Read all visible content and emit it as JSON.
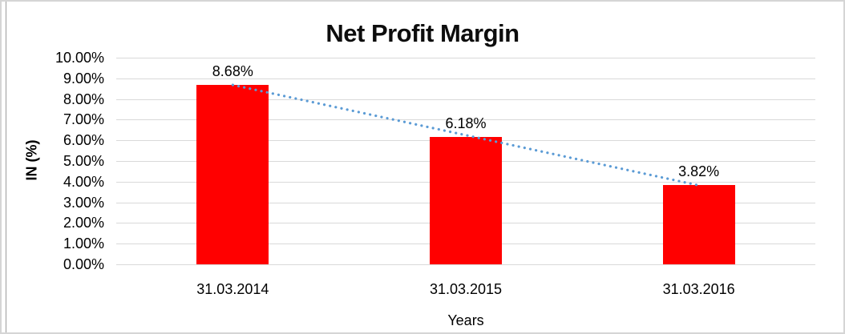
{
  "chart_data": {
    "type": "bar",
    "title": "Net Profit Margin",
    "categories": [
      "31.03.2014",
      "31.03.2015",
      "31.03.2016"
    ],
    "values": [
      8.68,
      6.18,
      3.82
    ],
    "data_labels": [
      "8.68%",
      "6.18%",
      "3.82%"
    ],
    "xlabel": "Years",
    "ylabel": "IN (%)",
    "ylim": [
      0,
      10
    ],
    "ytick_labels": [
      "0.00%",
      "1.00%",
      "2.00%",
      "3.00%",
      "4.00%",
      "5.00%",
      "6.00%",
      "7.00%",
      "8.00%",
      "9.00%",
      "10.00%"
    ],
    "grid": true,
    "legend": "none",
    "bar_color": "#FF0000",
    "gridline_color": "#D9D9D9",
    "text_color": "#000000",
    "trendline": {
      "type": "linear",
      "style": "dotted",
      "color": "#5B9BD5"
    }
  }
}
